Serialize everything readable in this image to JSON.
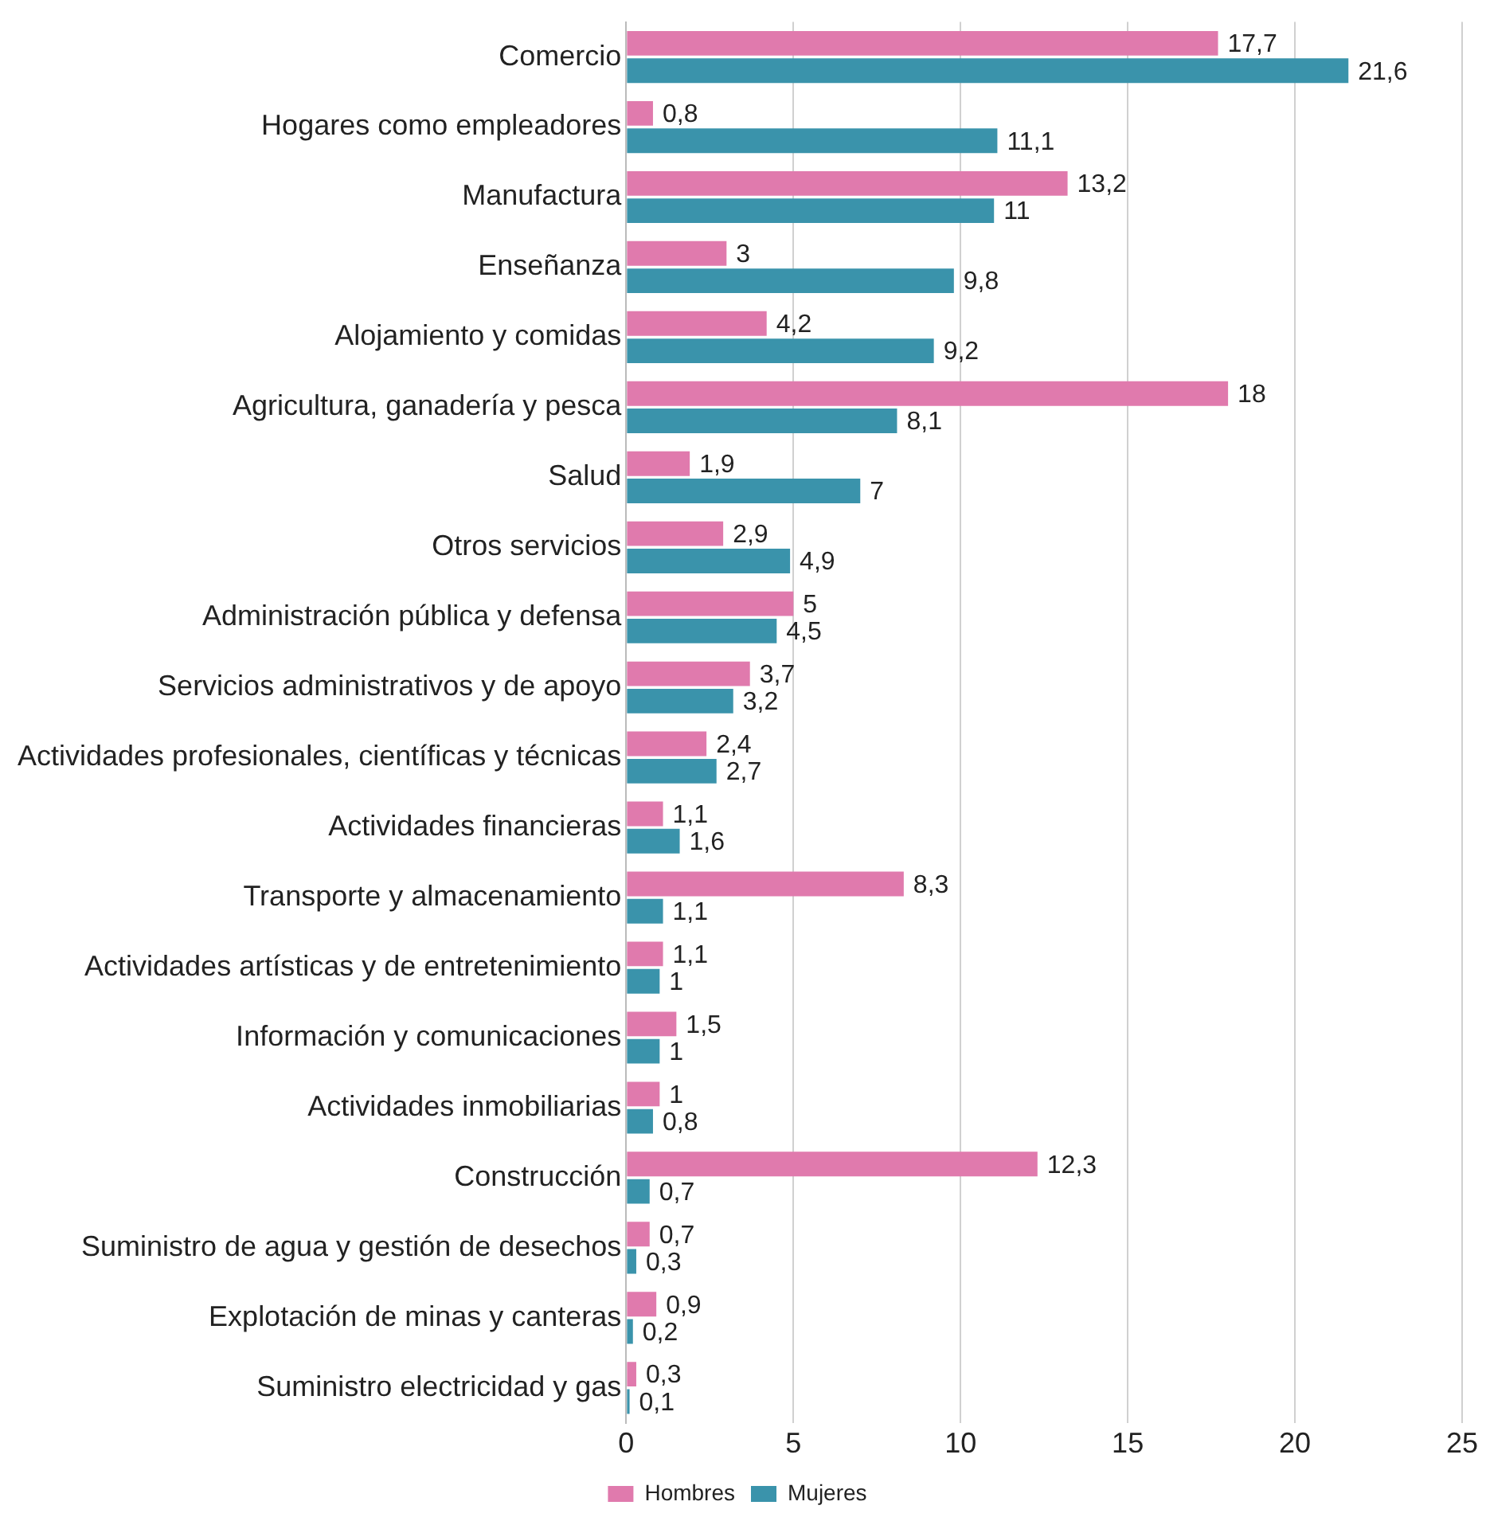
{
  "chart_data": {
    "type": "bar",
    "orientation": "horizontal",
    "categories": [
      "Comercio",
      "Hogares como empleadores",
      "Manufactura",
      "Enseñanza",
      "Alojamiento y comidas",
      "Agricultura, ganadería y pesca",
      "Salud",
      "Otros servicios",
      "Administración pública y defensa",
      "Servicios administrativos y de apoyo",
      "Actividades profesionales, científicas y técnicas",
      "Actividades financieras",
      "Transporte y almacenamiento",
      "Actividades artísticas y de entretenimiento",
      "Información y comunicaciones",
      "Actividades inmobiliarias",
      "Construcción",
      "Suministro de agua y gestión de desechos",
      "Explotación de minas y canteras",
      "Suministro electricidad y gas"
    ],
    "series": [
      {
        "name": "Hombres",
        "color": "#e07aad",
        "values": [
          17.7,
          0.8,
          13.2,
          3,
          4.2,
          18,
          1.9,
          2.9,
          5,
          3.7,
          2.4,
          1.1,
          8.3,
          1.1,
          1.5,
          1,
          12.3,
          0.7,
          0.9,
          0.3
        ],
        "value_labels": [
          "17,7",
          "0,8",
          "13,2",
          "3",
          "4,2",
          "18",
          "1,9",
          "2,9",
          "5",
          "3,7",
          "2,4",
          "1,1",
          "8,3",
          "1,1",
          "1,5",
          "1",
          "12,3",
          "0,7",
          "0,9",
          "0,3"
        ]
      },
      {
        "name": "Mujeres",
        "color": "#3a93ab",
        "values": [
          21.6,
          11.1,
          11,
          9.8,
          9.2,
          8.1,
          7,
          4.9,
          4.5,
          3.2,
          2.7,
          1.6,
          1.1,
          1,
          1,
          0.8,
          0.7,
          0.3,
          0.2,
          0.1
        ],
        "value_labels": [
          "21,6",
          "11,1",
          "11",
          "9,8",
          "9,2",
          "8,1",
          "7",
          "4,9",
          "4,5",
          "3,2",
          "2,7",
          "1,6",
          "1,1",
          "1",
          "1",
          "0,8",
          "0,7",
          "0,3",
          "0,2",
          "0,1"
        ]
      }
    ],
    "xlim": [
      0,
      25
    ],
    "xticks": [
      0,
      5,
      10,
      15,
      20,
      25
    ],
    "grid": "x",
    "legend": "bottom"
  }
}
